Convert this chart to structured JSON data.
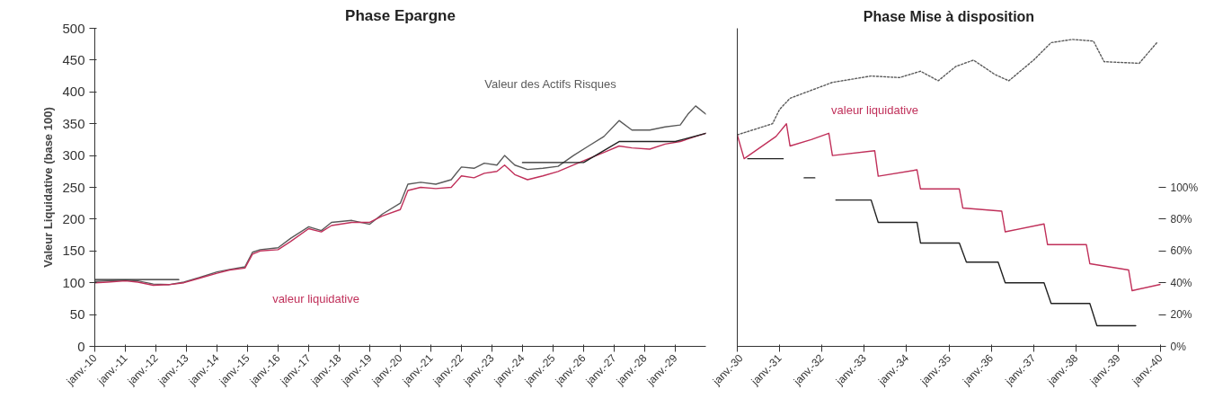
{
  "chart_data": [
    {
      "type": "line",
      "title": "Phase Epargne",
      "ylabel": "Valeur Liquidative (base 100)",
      "xlim": [
        "2010-01",
        "2030-01"
      ],
      "ylim": [
        0,
        500
      ],
      "yticks": [
        0,
        50,
        100,
        150,
        200,
        250,
        300,
        350,
        400,
        450,
        500
      ],
      "xticks": [
        {
          "value": "2010-01",
          "label": "janv.-10"
        },
        {
          "value": "2011-01",
          "label": "janv.-11"
        },
        {
          "value": "2012-01",
          "label": "janv.-12"
        },
        {
          "value": "2013-01",
          "label": "janv.-13"
        },
        {
          "value": "2014-01",
          "label": "janv.-14"
        },
        {
          "value": "2015-01",
          "label": "janv.-15"
        },
        {
          "value": "2016-01",
          "label": "janv.-16"
        },
        {
          "value": "2017-01",
          "label": "janv.-17"
        },
        {
          "value": "2018-01",
          "label": "janv.-18"
        },
        {
          "value": "2019-01",
          "label": "janv.-19"
        },
        {
          "value": "2020-01",
          "label": "janv.-20"
        },
        {
          "value": "2021-01",
          "label": "janv.-21"
        },
        {
          "value": "2022-01",
          "label": "janv.-22"
        },
        {
          "value": "2023-01",
          "label": "janv.-23"
        },
        {
          "value": "2024-01",
          "label": "janv.-24"
        },
        {
          "value": "2025-01",
          "label": "janv.-25"
        },
        {
          "value": "2026-01",
          "label": "janv.-26"
        },
        {
          "value": "2027-01",
          "label": "janv.-27"
        },
        {
          "value": "2028-01",
          "label": "janv.-28"
        },
        {
          "value": "2029-01",
          "label": "janv.-29"
        }
      ],
      "grid": false,
      "line_style": "solid",
      "series": [
        {
          "name": "Valeur des Actifs Risques",
          "color": "#5a5a5a",
          "x": [
            "2010-01",
            "2010-06",
            "2011-01",
            "2011-06",
            "2011-12",
            "2012-06",
            "2012-12",
            "2013-06",
            "2014-01",
            "2014-06",
            "2014-12",
            "2015-03",
            "2015-06",
            "2016-01",
            "2016-06",
            "2017-01",
            "2017-06",
            "2017-10",
            "2018-06",
            "2019-01",
            "2019-06",
            "2020-01",
            "2020-04",
            "2020-09",
            "2021-03",
            "2021-09",
            "2022-01",
            "2022-06",
            "2022-10",
            "2023-03",
            "2023-06",
            "2023-10",
            "2024-03",
            "2024-09",
            "2025-03",
            "2025-09",
            "2026-03",
            "2026-09",
            "2027-03",
            "2027-08",
            "2028-03",
            "2028-09",
            "2029-03",
            "2029-06",
            "2029-09",
            "2030-01"
          ],
          "values": [
            102,
            103,
            104,
            103,
            98,
            97,
            101,
            108,
            117,
            121,
            125,
            148,
            152,
            155,
            170,
            188,
            182,
            195,
            198,
            192,
            208,
            225,
            255,
            258,
            255,
            262,
            282,
            280,
            288,
            285,
            300,
            285,
            278,
            280,
            283,
            300,
            315,
            330,
            355,
            340,
            340,
            345,
            348,
            365,
            378,
            365
          ]
        },
        {
          "name": "valeur liquidative",
          "color": "#c0305a",
          "x": [
            "2010-01",
            "2010-06",
            "2011-01",
            "2011-06",
            "2011-12",
            "2012-06",
            "2012-12",
            "2013-06",
            "2014-01",
            "2014-06",
            "2014-12",
            "2015-03",
            "2015-06",
            "2016-01",
            "2016-06",
            "2017-01",
            "2017-06",
            "2017-10",
            "2018-06",
            "2019-01",
            "2019-06",
            "2020-01",
            "2020-04",
            "2020-09",
            "2021-03",
            "2021-09",
            "2022-01",
            "2022-06",
            "2022-10",
            "2023-03",
            "2023-06",
            "2023-10",
            "2024-03",
            "2024-09",
            "2025-03",
            "2025-09",
            "2026-03",
            "2026-09",
            "2027-03",
            "2027-08",
            "2028-03",
            "2028-09",
            "2029-03",
            "2029-09",
            "2030-01"
          ],
          "values": [
            100,
            101,
            103,
            101,
            96,
            97,
            100,
            107,
            115,
            120,
            123,
            145,
            150,
            152,
            165,
            185,
            180,
            190,
            195,
            195,
            205,
            215,
            245,
            250,
            248,
            250,
            268,
            265,
            272,
            275,
            285,
            270,
            262,
            268,
            275,
            285,
            295,
            305,
            315,
            312,
            310,
            318,
            322,
            330,
            335
          ]
        },
        {
          "color": "#222222",
          "x": [
            "2010-01",
            "2012-10",
            "2018-01",
            "2024-01",
            "2026-01",
            "2027-03",
            "2029-01",
            "2030-01"
          ],
          "values": [
            105,
            105,
            null,
            289,
            289,
            322,
            322,
            335
          ]
        }
      ]
    },
    {
      "type": "line",
      "title": "Phase Mise à disposition",
      "xlim": [
        "2030-01",
        "2040-01"
      ],
      "y2lim": [
        0,
        200
      ],
      "y2ticks": [
        {
          "value": 0,
          "label": "0%"
        },
        {
          "value": 20,
          "label": "20%"
        },
        {
          "value": 40,
          "label": "40%"
        },
        {
          "value": 60,
          "label": "60%"
        },
        {
          "value": 80,
          "label": "80%"
        },
        {
          "value": 100,
          "label": "100%"
        }
      ],
      "xticks": [
        {
          "value": "2030-01",
          "label": "janv.-30"
        },
        {
          "value": "2031-01",
          "label": "janv.-31"
        },
        {
          "value": "2032-01",
          "label": "janv.-32"
        },
        {
          "value": "2033-01",
          "label": "janv.-33"
        },
        {
          "value": "2034-01",
          "label": "janv.-34"
        },
        {
          "value": "2035-01",
          "label": "janv.-35"
        },
        {
          "value": "2036-01",
          "label": "janv.-36"
        },
        {
          "value": "2037-01",
          "label": "janv.-37"
        },
        {
          "value": "2038-01",
          "label": "janv.-38"
        },
        {
          "value": "2039-01",
          "label": "janv.-39"
        },
        {
          "value": "2040-01",
          "label": "janv.-40"
        }
      ],
      "grid": false,
      "series": [
        {
          "color": "#5a5a5a",
          "axis": "y2",
          "line_style": "dotted",
          "x": [
            "2030-01",
            "2030-11",
            "2031-01",
            "2031-04",
            "2031-10",
            "2032-04",
            "2033-03",
            "2033-11",
            "2034-05",
            "2034-10",
            "2035-03",
            "2035-08",
            "2036-02",
            "2036-06",
            "2037-01",
            "2037-06",
            "2037-12",
            "2038-06",
            "2038-09",
            "2039-07",
            "2039-12"
          ],
          "values": [
            133,
            140,
            149,
            156,
            161,
            166,
            170,
            169,
            173,
            167,
            176,
            180,
            171,
            167,
            180,
            191,
            193,
            192,
            179,
            178,
            191
          ]
        },
        {
          "name": "valeur liquidative",
          "color": "#c0305a",
          "axis": "y2",
          "line_style": "solid",
          "x": [
            "2030-01",
            "2030-03",
            "2030-12",
            "2031-03",
            "2031-04",
            "2031-10",
            "2032-03",
            "2032-04",
            "2033-04",
            "2033-05",
            "2034-04",
            "2034-05",
            "2035-04",
            "2035-05",
            "2036-04",
            "2036-05",
            "2037-04",
            "2037-05",
            "2038-04",
            "2038-05",
            "2039-04",
            "2039-05",
            "2040-01"
          ],
          "values": [
            133,
            118,
            132,
            140,
            126,
            130,
            134,
            120,
            123,
            107,
            111,
            99,
            99,
            87,
            85,
            72,
            77,
            64,
            64,
            52,
            48,
            35,
            39
          ]
        },
        {
          "color": "#222222",
          "axis": "y2",
          "line_style": "solid",
          "x": [
            "2030-04",
            "2031-02",
            "2031-06",
            "2031-08",
            "2031-11",
            "2032-03",
            "2032-05",
            "2033-03",
            "2033-05",
            "2034-04",
            "2034-05",
            "2035-04",
            "2035-06",
            "2036-03",
            "2036-05",
            "2037-04",
            "2037-06",
            "2038-05",
            "2038-07",
            "2039-06"
          ],
          "values": [
            118,
            118,
            null,
            106,
            106,
            null,
            92,
            92,
            78,
            78,
            65,
            65,
            53,
            53,
            40,
            40,
            27,
            27,
            13,
            13
          ]
        }
      ]
    }
  ]
}
